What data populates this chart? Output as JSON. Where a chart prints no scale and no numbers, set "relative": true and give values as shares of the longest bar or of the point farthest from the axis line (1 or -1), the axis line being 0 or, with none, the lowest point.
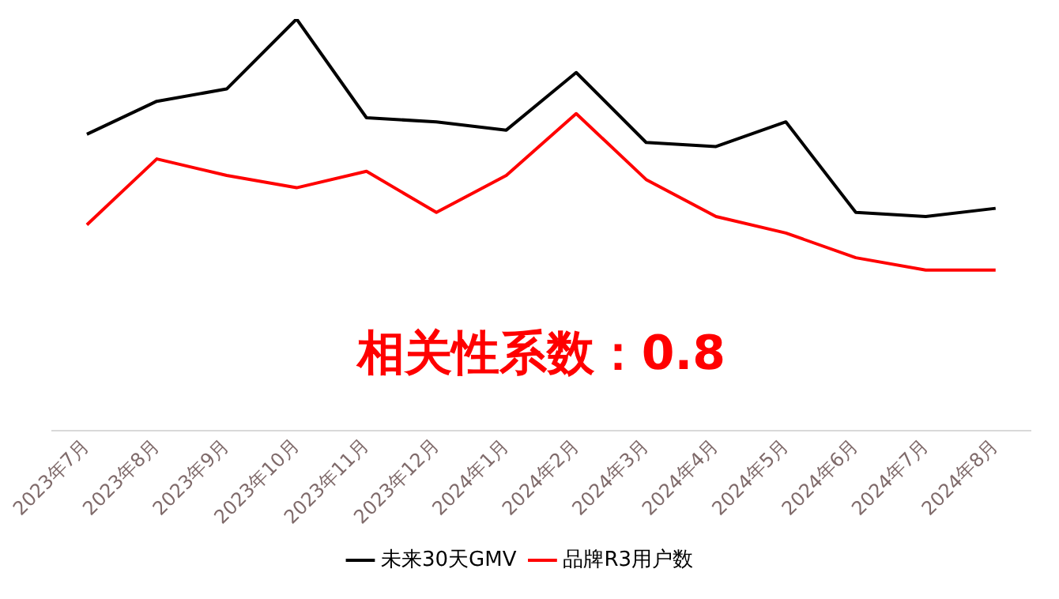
{
  "chart_data": {
    "type": "line",
    "relative": true,
    "categories": [
      "2023年7月",
      "2023年8月",
      "2023年9月",
      "2023年10月",
      "2023年11月",
      "2023年12月",
      "2024年1月",
      "2024年2月",
      "2024年3月",
      "2024年4月",
      "2024年5月",
      "2024年6月",
      "2024年7月",
      "2024年8月"
    ],
    "series": [
      {
        "name": "未来30天GMV",
        "color": "#000000",
        "values": [
          0.72,
          0.8,
          0.83,
          1,
          0.76,
          0.75,
          0.73,
          0.87,
          0.7,
          0.69,
          0.75,
          0.53,
          0.52,
          0.54
        ]
      },
      {
        "name": "品牌R3用户数",
        "color": "#ff0000",
        "values": [
          0.5,
          0.66,
          0.62,
          0.59,
          0.63,
          0.53,
          0.62,
          0.77,
          0.61,
          0.52,
          0.48,
          0.42,
          0.39,
          0.39
        ]
      }
    ],
    "annotations": [
      "相关性系数：0.8"
    ],
    "legend": "bottom",
    "grid": false,
    "marker": "none",
    "line_style": "solid"
  }
}
